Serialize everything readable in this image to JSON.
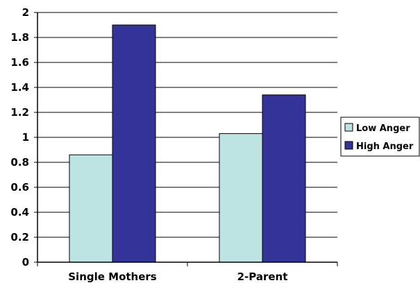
{
  "chart_data": {
    "type": "bar",
    "title": "",
    "xlabel": "",
    "ylabel": "",
    "categories": [
      "Single Mothers",
      "2-Parent"
    ],
    "series": [
      {
        "name": "Low Anger",
        "values": [
          0.86,
          1.03
        ],
        "color": "#bde3e3"
      },
      {
        "name": "High Anger",
        "values": [
          1.9,
          1.34
        ],
        "color": "#333399"
      }
    ],
    "ylim": [
      0,
      2
    ],
    "yticks": [
      0,
      0.2,
      0.4,
      0.6,
      0.8,
      1,
      1.2,
      1.4,
      1.6,
      1.8,
      2
    ],
    "ytick_labels": [
      "0",
      "0.2",
      "0.4",
      "0.6",
      "0.8",
      "1",
      "1.2",
      "1.4",
      "1.6",
      "1.8",
      "2"
    ],
    "grid": true,
    "legend": "right"
  }
}
